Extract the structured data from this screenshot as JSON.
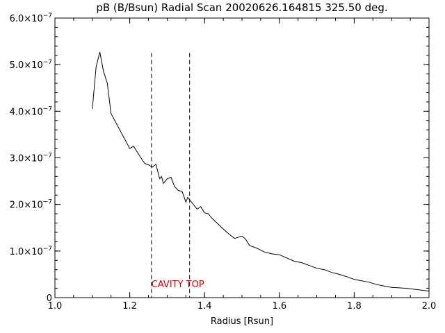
{
  "chart_data": {
    "type": "line",
    "title": "pB (B/Bsun) Radial Scan 20020626.164815 325.50 deg.",
    "xlabel": "Radius [Rsun]",
    "ylabel": "",
    "xlim": [
      1.0,
      2.0
    ],
    "ylim": [
      0,
      6e-07
    ],
    "x_ticks": [
      1.0,
      1.2,
      1.4,
      1.6,
      1.8,
      2.0
    ],
    "x_tick_labels": [
      "1.0",
      "1.2",
      "1.4",
      "1.6",
      "1.8",
      "2.0"
    ],
    "y_ticks": [
      0,
      1e-07,
      2e-07,
      3e-07,
      4e-07,
      5e-07,
      6e-07
    ],
    "y_tick_labels": [
      {
        "mantissa": "0",
        "exponent": ""
      },
      {
        "mantissa": "1.0×10",
        "exponent": "−7"
      },
      {
        "mantissa": "2.0×10",
        "exponent": "−7"
      },
      {
        "mantissa": "3.0×10",
        "exponent": "−7"
      },
      {
        "mantissa": "4.0×10",
        "exponent": "−7"
      },
      {
        "mantissa": "5.0×10",
        "exponent": "−7"
      },
      {
        "mantissa": "6.0×10",
        "exponent": "−7"
      }
    ],
    "grid": false,
    "series": [
      {
        "color": "#000000",
        "x": [
          1.1,
          1.11,
          1.12,
          1.13,
          1.14,
          1.15,
          1.16,
          1.18,
          1.2,
          1.21,
          1.23,
          1.24,
          1.25,
          1.26,
          1.27,
          1.28,
          1.285,
          1.29,
          1.3,
          1.31,
          1.32,
          1.33,
          1.34,
          1.35,
          1.355,
          1.36,
          1.37,
          1.38,
          1.39,
          1.4,
          1.41,
          1.42,
          1.44,
          1.46,
          1.48,
          1.5,
          1.51,
          1.52,
          1.54,
          1.56,
          1.58,
          1.6,
          1.62,
          1.64,
          1.66,
          1.68,
          1.7,
          1.72,
          1.74,
          1.76,
          1.78,
          1.8,
          1.82,
          1.84,
          1.86,
          1.88,
          1.9,
          1.92,
          1.94,
          1.96,
          1.98,
          2.0
        ],
        "y": [
          4.05e-07,
          4.95e-07,
          5.27e-07,
          4.85e-07,
          4.6e-07,
          3.95e-07,
          3.8e-07,
          3.5e-07,
          3.2e-07,
          3.25e-07,
          3e-07,
          2.88e-07,
          2.85e-07,
          2.8e-07,
          2.86e-07,
          2.55e-07,
          2.6e-07,
          2.45e-07,
          2.55e-07,
          2.58e-07,
          2.38e-07,
          2.3e-07,
          2.28e-07,
          2.05e-07,
          2.15e-07,
          2.1e-07,
          2e-07,
          1.9e-07,
          1.95e-07,
          1.82e-07,
          1.8e-07,
          1.7e-07,
          1.55e-07,
          1.4e-07,
          1.27e-07,
          1.32e-07,
          1.25e-07,
          1.12e-07,
          1.06e-07,
          9.8e-08,
          9.4e-08,
          9.2e-08,
          8.5e-08,
          7.8e-08,
          7.5e-08,
          6.9e-08,
          6.3e-08,
          6e-08,
          5.4e-08,
          5e-08,
          4.5e-08,
          3.9e-08,
          3.6e-08,
          3.3e-08,
          2.8e-08,
          2.5e-08,
          2.2e-08,
          2.1e-08,
          2e-08,
          1.8e-08,
          1.6e-08,
          1.4e-08
        ]
      }
    ],
    "markers": [
      {
        "x": 1.258,
        "y_top": 5.25e-07
      },
      {
        "x": 1.36,
        "y_top": 5.25e-07
      }
    ],
    "annotation": {
      "text": "CAVITY TOP",
      "x": 1.258,
      "y": 2.2e-08,
      "color": "#d40000"
    }
  }
}
